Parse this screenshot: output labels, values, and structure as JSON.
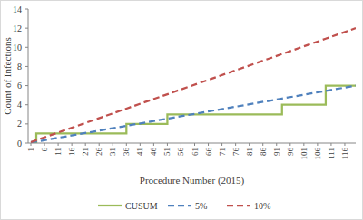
{
  "chart_data": {
    "type": "line",
    "x_label": "Procedure Number (2015)",
    "y_label": "Count of Infections",
    "x": [
      1,
      3,
      36,
      51,
      93,
      109,
      120
    ],
    "xlim": [
      0,
      120
    ],
    "xticks": [
      1,
      6,
      11,
      16,
      21,
      26,
      31,
      36,
      41,
      46,
      51,
      56,
      61,
      66,
      71,
      76,
      81,
      86,
      91,
      96,
      101,
      106,
      111,
      116
    ],
    "ylim": [
      0,
      14
    ],
    "yticks": [
      0,
      2,
      4,
      6,
      8,
      10,
      12,
      14
    ],
    "grid": false,
    "legend": "bottom",
    "series": [
      {
        "name": "CUSUM",
        "color": "#9bbb59",
        "type": "step",
        "line_style": "solid",
        "values": [
          0,
          1,
          2,
          3,
          4,
          6,
          6
        ]
      },
      {
        "name": "5%",
        "color": "#4f81bd",
        "type": "line",
        "line_style": "dashed",
        "values": [
          0.1,
          0.15,
          1.8,
          2.55,
          4.65,
          5.45,
          6
        ]
      },
      {
        "name": "10%",
        "color": "#c0504d",
        "type": "line",
        "line_style": "dashed",
        "values": [
          0.1,
          0.3,
          3.6,
          5.1,
          9.3,
          10.9,
          12
        ]
      }
    ]
  }
}
